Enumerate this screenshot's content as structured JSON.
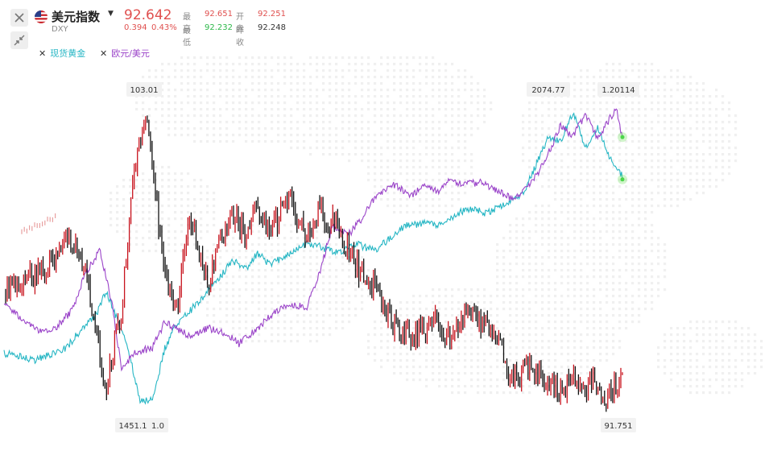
{
  "symbol": {
    "name": "美元指数",
    "code": "DXY",
    "last": "92.642",
    "change": "0.394",
    "change_pct": "0.43%",
    "stats": {
      "high_label": "最高",
      "high": "92.651",
      "open_label": "开盘",
      "open": "92.251",
      "low_label": "最低",
      "low": "92.232",
      "prev_label": "昨收",
      "prev": "92.248"
    }
  },
  "colors": {
    "up": "#e0504f",
    "down": "#2db84a",
    "candle_up": "#c8141e",
    "candle_down": "#111111",
    "gold": "#26b6c4",
    "eurusd": "#9b45c9"
  },
  "legend": [
    {
      "name": "现货黄金",
      "color": "#26b6c4"
    },
    {
      "name": "欧元/美元",
      "color": "#9b45c9"
    }
  ],
  "chart_data": {
    "type": "line",
    "series": [
      {
        "name": "美元指数",
        "style": "candlestick",
        "x": [
          0.0,
          0.08,
          0.1,
          0.13,
          0.155,
          0.165,
          0.19,
          0.21,
          0.23,
          0.26,
          0.28,
          0.3,
          0.33,
          0.35,
          0.37,
          0.39,
          0.41,
          0.43,
          0.46,
          0.49,
          0.51,
          0.54,
          0.57,
          0.6,
          0.63,
          0.65,
          0.68,
          0.7,
          0.72,
          0.74,
          0.76,
          0.78,
          0.8,
          0.82,
          0.84,
          0.86,
          0.88,
          0.9,
          0.92,
          0.94,
          0.95,
          0.97,
          1.0
        ],
        "values": [
          96.2,
          97.2,
          98.5,
          97.3,
          93.6,
          92.3,
          95.4,
          101.0,
          103.01,
          96.9,
          95.4,
          99.3,
          96.4,
          98.1,
          99.3,
          98.3,
          99.6,
          98.4,
          99.9,
          98.2,
          99.3,
          98.7,
          97.1,
          96.3,
          94.8,
          94.3,
          94.6,
          94.9,
          94.2,
          95.0,
          95.4,
          94.6,
          94.0,
          92.5,
          93.0,
          92.8,
          92.6,
          92.1,
          92.8,
          92.2,
          92.6,
          91.751,
          92.642
        ]
      },
      {
        "name": "现货黄金",
        "x": [
          0.0,
          0.05,
          0.1,
          0.13,
          0.15,
          0.165,
          0.2,
          0.22,
          0.24,
          0.26,
          0.28,
          0.3,
          0.33,
          0.35,
          0.37,
          0.39,
          0.41,
          0.43,
          0.46,
          0.49,
          0.51,
          0.54,
          0.57,
          0.6,
          0.63,
          0.65,
          0.68,
          0.7,
          0.72,
          0.74,
          0.76,
          0.78,
          0.8,
          0.82,
          0.84,
          0.86,
          0.88,
          0.9,
          0.92,
          0.94,
          0.96,
          0.98,
          1.0
        ],
        "values": [
          1555,
          1540,
          1565,
          1615,
          1640,
          1690,
          1570,
          1451.1,
          1455,
          1565,
          1620,
          1645,
          1690,
          1720,
          1755,
          1735,
          1770,
          1745,
          1770,
          1790,
          1785,
          1770,
          1790,
          1775,
          1810,
          1830,
          1835,
          1830,
          1845,
          1860,
          1865,
          1855,
          1870,
          1880,
          1900,
          1960,
          2020,
          2010,
          2074.77,
          2000,
          2040,
          1975,
          1935
        ]
      },
      {
        "name": "欧元/美元",
        "x": [
          0.0,
          0.03,
          0.06,
          0.08,
          0.11,
          0.13,
          0.155,
          0.175,
          0.19,
          0.21,
          0.24,
          0.26,
          0.3,
          0.33,
          0.36,
          0.38,
          0.41,
          0.44,
          0.46,
          0.49,
          0.51,
          0.53,
          0.56,
          0.58,
          0.6,
          0.63,
          0.66,
          0.68,
          0.7,
          0.72,
          0.74,
          0.77,
          0.8,
          0.82,
          0.84,
          0.86,
          0.88,
          0.9,
          0.92,
          0.94,
          0.96,
          0.98,
          0.99,
          1.0
        ],
        "values": [
          1.102,
          1.092,
          1.086,
          1.087,
          1.097,
          1.115,
          1.128,
          1.1,
          1.067,
          1.075,
          1.078,
          1.091,
          1.084,
          1.088,
          1.085,
          1.08,
          1.088,
          1.097,
          1.1,
          1.099,
          1.116,
          1.14,
          1.137,
          1.145,
          1.155,
          1.162,
          1.156,
          1.162,
          1.158,
          1.165,
          1.162,
          1.163,
          1.158,
          1.155,
          1.158,
          1.166,
          1.178,
          1.192,
          1.187,
          1.198,
          1.186,
          1.196,
          1.20114,
          1.186
        ]
      }
    ],
    "annotations": [
      "103.01",
      "2074.77",
      "1.20114",
      "1451.1",
      "1.0",
      "91.751"
    ],
    "grid": false
  }
}
